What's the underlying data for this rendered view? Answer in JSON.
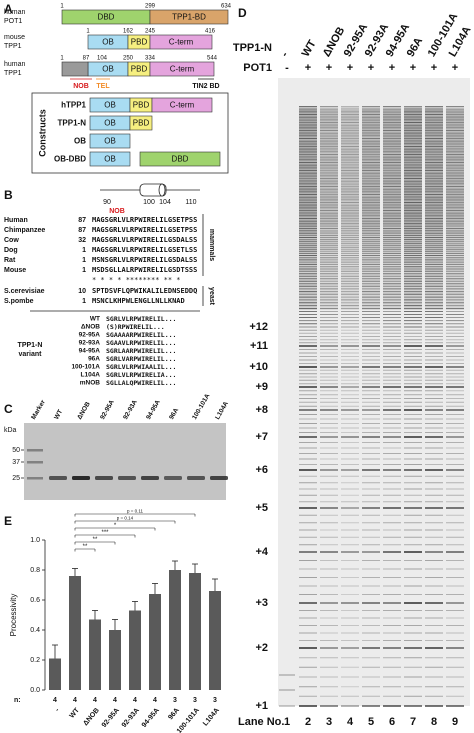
{
  "panel_a": {
    "label": "A",
    "domain_colors": {
      "DBD": "#9fd36d",
      "TPP1-BD": "#d9a46a",
      "OB": "#a9dcf2",
      "PBD": "#f6ef80",
      "C-term": "#e4a4dd"
    },
    "human_pot1": {
      "name": [
        "human",
        "POT1"
      ],
      "positions": [
        "1",
        "299",
        "634"
      ],
      "domains": [
        "DBD",
        "TPP1-BD"
      ]
    },
    "mouse_tpp1": {
      "name": [
        "mouse",
        "TPP1"
      ],
      "positions": [
        "1",
        "162",
        "245",
        "416"
      ],
      "domains": [
        "OB",
        "PBD",
        "C-term"
      ]
    },
    "human_tpp1": {
      "name": [
        "human",
        "TPP1"
      ],
      "positions": [
        "1",
        "87",
        "104",
        "250",
        "334",
        "544"
      ],
      "domains": [
        "OB",
        "PBD",
        "C-term"
      ],
      "regions": [
        "NOB",
        "TEL",
        "TIN2 BD"
      ]
    },
    "constructs": {
      "title": "Constructs",
      "rows": [
        {
          "name": "hTPP1",
          "domains": [
            "OB",
            "PBD",
            "C-term"
          ]
        },
        {
          "name": "TPP1-N",
          "domains": [
            "OB",
            "PBD"
          ]
        },
        {
          "name": "OB",
          "domains": [
            "OB"
          ]
        },
        {
          "name": "OB-DBD",
          "domains": [
            "OB",
            "DBD"
          ]
        }
      ]
    }
  },
  "panel_b": {
    "label": "B",
    "residue_numbers": [
      "90",
      "100",
      "104",
      "110"
    ],
    "region": "NOB",
    "alignment": [
      {
        "species": "Human",
        "start": "87",
        "sequence": "MAGSGRLVLRPWIRELILGSETPSS"
      },
      {
        "species": "Chimpanzee",
        "start": "87",
        "sequence": "MAGSGRLVLRPWIRELILGSETPSS"
      },
      {
        "species": "Cow",
        "start": "32",
        "sequence": "MAGSGRLVLRPWIRELILGSDALSS"
      },
      {
        "species": "Dog",
        "start": "1",
        "sequence": "MAGSGRLVLRPWIRELILGSETLSS"
      },
      {
        "species": "Rat",
        "start": "1",
        "sequence": "MSNSGRLVLRPWIRELILGSDALSS"
      },
      {
        "species": "Mouse",
        "start": "1",
        "sequence": "MSDSGLLALRPWIRELILGSDTSSS"
      }
    ],
    "conservation": "*   * * * ******** **  *",
    "groups": [
      "mammals",
      "yeast"
    ],
    "yeast": [
      {
        "species": "S.cerevisiae",
        "start": "10",
        "sequence": "SPTDSVFLQPWIKALILEDNSEDDQ"
      },
      {
        "species": "S.pombe",
        "start": "1",
        "sequence": "MSNCLKHPWLENGLLNLLKNAD"
      }
    ],
    "variants_title": [
      "TPP1-N",
      "variant"
    ],
    "variants": [
      {
        "name": "WT",
        "sequence": "SGRLVLRPWIRELIL..."
      },
      {
        "name": "ΔNOB",
        "sequence": "(S)RPWIRELIL..."
      },
      {
        "name": "92-95A",
        "sequence": "SGAAAARPWIRELIL..."
      },
      {
        "name": "92-93A",
        "sequence": "SGAAVLRPWIRELIL..."
      },
      {
        "name": "94-95A",
        "sequence": "SGRLAARPWIRELIL..."
      },
      {
        "name": "96A",
        "sequence": "SGRLVARPWIRELIL..."
      },
      {
        "name": "100-101A",
        "sequence": "SGRLVLRPWIAALIL..."
      },
      {
        "name": "L104A",
        "sequence": "SGRLVLRPWIRELIA..."
      },
      {
        "name": "mNOB",
        "sequence": "SGLLALQPWIRELIL..."
      }
    ]
  },
  "panel_c": {
    "label": "C",
    "unit": "kDa",
    "lanes": [
      "Marker",
      "WT",
      "ΔNOB",
      "92-95A",
      "92-93A",
      "94-95A",
      "96A",
      "100-101A",
      "L104A"
    ],
    "markers": [
      "50",
      "37",
      "25"
    ]
  },
  "panel_d": {
    "label": "D",
    "row_labels": [
      "TPP1-N",
      "POT1"
    ],
    "lanes": [
      "-",
      "WT",
      "ΔNOB",
      "92-95A",
      "92-93A",
      "94-95A",
      "96A",
      "100-101A",
      "L104A"
    ],
    "pot1": [
      "-",
      "+",
      "+",
      "+",
      "+",
      "+",
      "+",
      "+",
      "+"
    ],
    "repeats": [
      "+1",
      "+2",
      "+3",
      "+4",
      "+5",
      "+6",
      "+7",
      "+8",
      "+9",
      "+10",
      "+11",
      "+12"
    ],
    "lane_title": "Lane No.",
    "lane_numbers": [
      "1",
      "2",
      "3",
      "4",
      "5",
      "6",
      "7",
      "8",
      "9"
    ]
  },
  "panel_e": {
    "label": "E",
    "chart_data": {
      "type": "bar",
      "y_label": "Processivity",
      "categories": [
        "-",
        "WT",
        "ΔNOB",
        "92-95A",
        "92-93A",
        "94-95A",
        "96A",
        "100-101A",
        "L104A"
      ],
      "values": [
        0.21,
        0.76,
        0.47,
        0.4,
        0.53,
        0.64,
        0.8,
        0.78,
        0.66
      ],
      "errors": [
        0.09,
        0.05,
        0.06,
        0.07,
        0.06,
        0.07,
        0.06,
        0.06,
        0.08
      ],
      "color": "#5a5a5a",
      "ylim": [
        0,
        1
      ],
      "yticks": [
        {
          "value": 0,
          "label": "0.0"
        },
        {
          "value": 0.2,
          "label": "0.2"
        },
        {
          "value": 0.4,
          "label": "0.4"
        },
        {
          "value": 0.6,
          "label": "0.6"
        },
        {
          "value": 0.8,
          "label": "0.8"
        },
        {
          "value": 1,
          "label": "1.0"
        }
      ],
      "n_label": "n:",
      "n": [
        4,
        4,
        4,
        4,
        4,
        4,
        3,
        3,
        3
      ],
      "annotations": [
        "p = 0.11",
        "p = 0.14",
        "*",
        "***",
        "**",
        "**"
      ]
    }
  }
}
